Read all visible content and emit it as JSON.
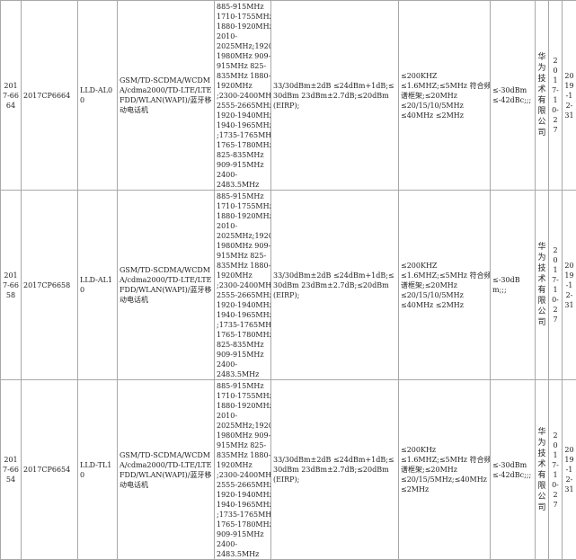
{
  "rows": [
    {
      "id": "2017-6664",
      "cert": "2017CP6664",
      "model": "LLD-AL00",
      "tech": "GSM/TD-SCDMA/WCDMA/cdma2000/TD-LTE/LTE FDD/WLAN(WAPI)/蓝牙移动电话机",
      "freq": [
        "885-915MHz",
        "1710-1755MHz",
        "1880-1920MHz",
        "2010-",
        "2025MHz;1920-",
        "1980MHz 909-",
        "915MHz 825-",
        "835MHz 1880-",
        "1920MHz",
        ";2300-2400MHz",
        "2555-2665MHz",
        "1920-1940MHz",
        "1940-1965MHz",
        ";1735-1765MHz",
        "1765-1780MHz",
        "825-835MHz",
        "909-915MHz",
        "2400-",
        "2483.5MHz"
      ],
      "power": "33/30dBm±2dB ≤24dBm+1dB;≤30dBm 23dBm±2.7dB;≤20dBm(EIRP);",
      "bandwidth": [
        "≤200KHZ",
        "≤1.6MHZ;≤5MHz 符合频",
        "谱框架;≤20MHz",
        "≤20/15/10/5MHz",
        "≤40MHz ≤2MHz"
      ],
      "spurious": "≤-30dBm ≤-42dBc;;;",
      "maker": "华为技术有限公司",
      "issue": "2017-10-27",
      "expiry": "2019-12-31"
    },
    {
      "id": "2017-6658",
      "cert": "2017CP6658",
      "model": "LLD-AL10",
      "tech": "GSM/TD-SCDMA/WCDMA/cdma2000/TD-LTE/LTE FDD/WLAN(WAPI)/蓝牙移动电话机",
      "freq": [
        "885-915MHz",
        "1710-1755MHz",
        "1880-1920MHz",
        "2010-",
        "2025MHz;1920-",
        "1980MHz 909-",
        "915MHz 825-",
        "835MHz 1880-",
        "1920MHz",
        ";2300-2400MHz",
        "2555-2665MHz",
        "1920-1940MHz",
        "1940-1965MHz",
        ";1735-1765MHz",
        "1765-1780MHz",
        "825-835MHz",
        "909-915MHz",
        "2400-",
        "2483.5MHz"
      ],
      "power": "33/30dBm±2dB ≤24dBm+1dB;≤30dBm 23dBm±2.7dB;≤20dBm(EIRP);",
      "bandwidth": [
        "≤200KHZ",
        "≤1.6MHZ;≤5MHz 符合频",
        "谱框架;≤20MHz",
        "≤20/15/10/5MHz",
        "≤40MHz ≤2MHz"
      ],
      "spurious": "≤-30dBm;;;",
      "maker": "华为技术有限公司",
      "issue": "2017-10-27",
      "expiry": "2019-12-31"
    },
    {
      "id": "2017-6654",
      "cert": "2017CP6654",
      "model": "LLD-TL10",
      "tech": "GSM/TD-SCDMA/WCDMA/cdma2000/TD-LTE/LTE FDD/WLAN(WAPI)/蓝牙移动电话机",
      "freq": [
        "885-915MHz",
        "1710-1755MHz",
        "1880-1920MHz",
        "2010-",
        "2025MHz;1920-",
        "1980MHz 909-",
        "915MHz 825-",
        "835MHz 1880-",
        "1920MHz",
        ";2300-2400MHz",
        "2555-2665MHz",
        "1920-1940MHz",
        "1940-1965MHz",
        ";1735-1765MHz",
        "1765-1780MHz",
        "909-915MHz",
        "2400-",
        "2483.5MHz"
      ],
      "power": "33/30dBm±2dB ≤24dBm+1dB;≤30dBm 23dBm±2.7dB;≤20dBm(EIRP);",
      "bandwidth": [
        "≤200KHz",
        "≤1.6MHZ;≤5MHz 符合频",
        "谱框架;≤20MHz",
        "≤20/15/5MHz;≤40MHz",
        "≤2MHz"
      ],
      "spurious": "≤-30dBm ≤-42dBc;;;",
      "maker": "华为技术有限公司",
      "issue": "2017-10-27",
      "expiry": "2019-12-31"
    }
  ]
}
